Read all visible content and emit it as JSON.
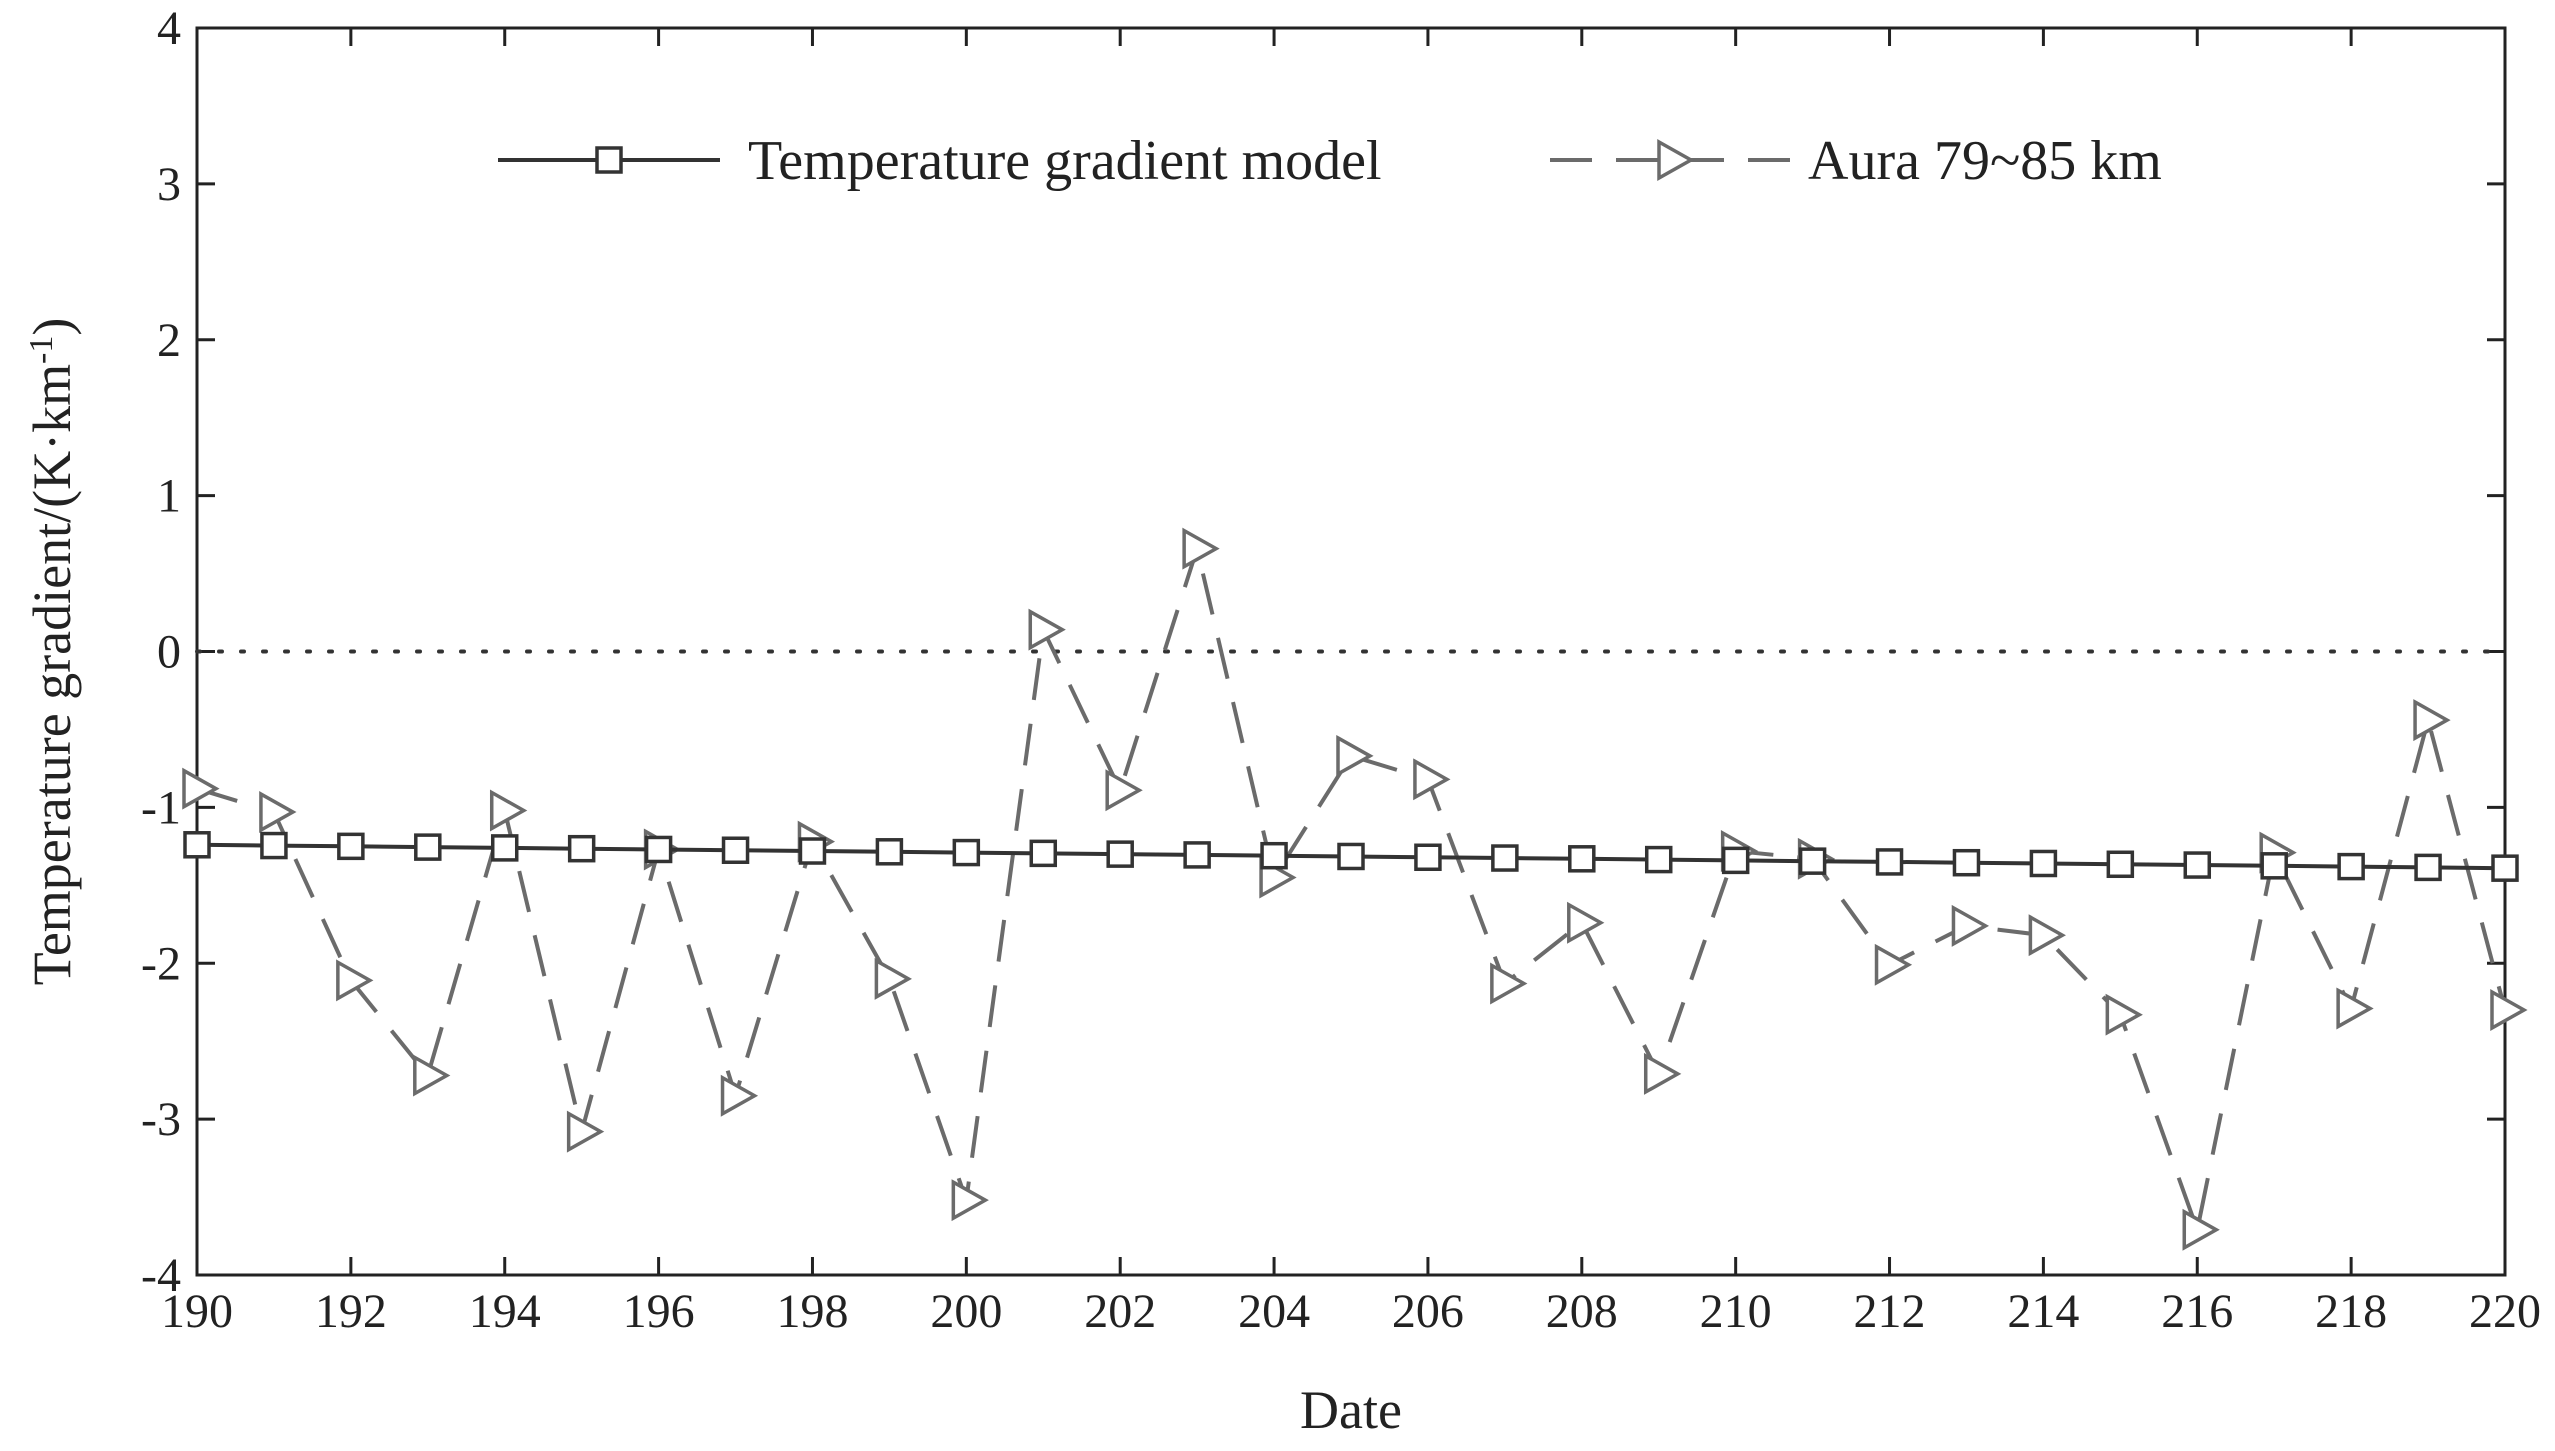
{
  "chart_data": {
    "type": "line",
    "title": "",
    "xlabel": "Date",
    "ylabel": "Temperature gradient/(K·km⁻¹)",
    "ylabel_parts": {
      "main": "Temperature gradient/(K·km",
      "sup": "-1",
      "close": ")"
    },
    "xlim": [
      190,
      220
    ],
    "ylim": [
      -4,
      4
    ],
    "x_ticks": [
      190,
      192,
      194,
      196,
      198,
      200,
      202,
      204,
      206,
      208,
      210,
      212,
      214,
      216,
      218,
      220
    ],
    "y_ticks": [
      -4,
      -3,
      -2,
      -1,
      0,
      1,
      2,
      3,
      4
    ],
    "grid": false,
    "reference_line": {
      "y": 0,
      "style": "dotted"
    },
    "legend": {
      "placement": "top-center"
    },
    "x": [
      190,
      191,
      192,
      193,
      194,
      195,
      196,
      197,
      198,
      199,
      200,
      201,
      202,
      203,
      204,
      205,
      206,
      207,
      208,
      209,
      210,
      211,
      212,
      213,
      214,
      215,
      216,
      217,
      218,
      219,
      220
    ],
    "series": [
      {
        "name": "Temperature gradient model",
        "marker": "square",
        "line": "solid",
        "color": "#333333",
        "values": [
          -1.24,
          -1.245,
          -1.25,
          -1.255,
          -1.26,
          -1.265,
          -1.27,
          -1.275,
          -1.28,
          -1.285,
          -1.29,
          -1.295,
          -1.3,
          -1.305,
          -1.31,
          -1.315,
          -1.32,
          -1.325,
          -1.33,
          -1.335,
          -1.34,
          -1.345,
          -1.35,
          -1.355,
          -1.36,
          -1.365,
          -1.37,
          -1.375,
          -1.38,
          -1.385,
          -1.39
        ]
      },
      {
        "name": "Aura 79~85 km",
        "marker": "triangle-right",
        "line": "dashed",
        "color": "#6b6b6b",
        "values": [
          -0.88,
          -1.03,
          -2.11,
          -2.72,
          -1.02,
          -3.08,
          -1.27,
          -2.85,
          -1.22,
          -2.1,
          -3.52,
          0.14,
          -0.89,
          0.66,
          -1.45,
          -0.67,
          -0.82,
          -2.13,
          -1.74,
          -2.71,
          -1.28,
          -1.33,
          -2.01,
          -1.76,
          -1.82,
          -2.33,
          -3.71,
          -1.29,
          -2.29,
          -0.44,
          -2.3
        ]
      }
    ]
  }
}
